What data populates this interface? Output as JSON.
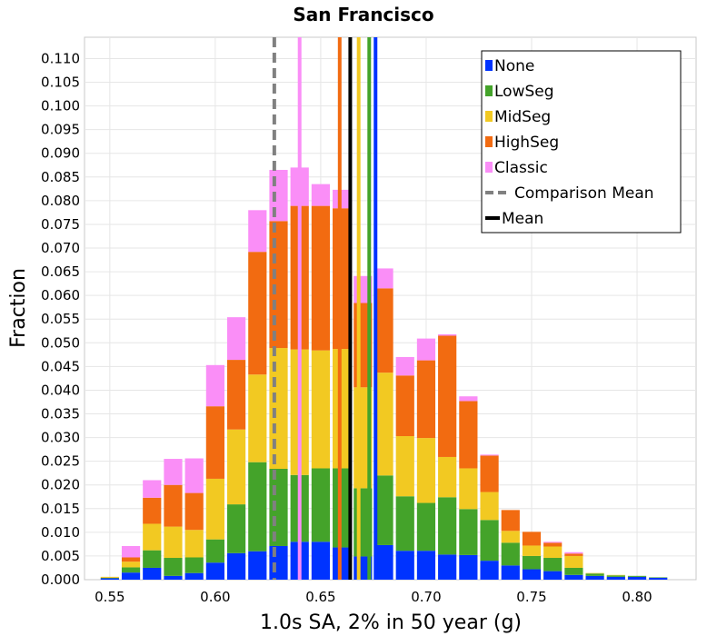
{
  "chart_data": {
    "type": "bar",
    "stacked": true,
    "title": "San Francisco",
    "xlabel": "1.0s SA, 2% in 50 year (g)",
    "ylabel": "Fraction",
    "xlim": [
      0.538,
      0.828
    ],
    "ylim": [
      0.0,
      0.1145
    ],
    "xticks": [
      "0.55",
      "0.60",
      "0.65",
      "0.70",
      "0.75",
      "0.80"
    ],
    "yticks": [
      "0.000",
      "0.005",
      "0.010",
      "0.015",
      "0.020",
      "0.025",
      "0.030",
      "0.035",
      "0.040",
      "0.045",
      "0.050",
      "0.055",
      "0.060",
      "0.065",
      "0.070",
      "0.075",
      "0.080",
      "0.085",
      "0.090",
      "0.095",
      "0.100",
      "0.105",
      "0.110"
    ],
    "grid": true,
    "bin_width": 0.01,
    "bin_centers": [
      0.55,
      0.56,
      0.57,
      0.58,
      0.59,
      0.6,
      0.61,
      0.62,
      0.63,
      0.64,
      0.65,
      0.66,
      0.67,
      0.68,
      0.69,
      0.7,
      0.71,
      0.72,
      0.73,
      0.74,
      0.75,
      0.76,
      0.77,
      0.78,
      0.79,
      0.8,
      0.81
    ],
    "series": [
      {
        "name": "None",
        "color": "#0033ff",
        "values": [
          0.0003,
          0.0015,
          0.0025,
          0.0008,
          0.0014,
          0.0036,
          0.0056,
          0.006,
          0.0071,
          0.008,
          0.008,
          0.0068,
          0.0049,
          0.0073,
          0.0061,
          0.0061,
          0.0053,
          0.0052,
          0.004,
          0.003,
          0.0022,
          0.0018,
          0.001,
          0.0008,
          0.0006,
          0.0006,
          0.0004
        ]
      },
      {
        "name": "LowSeg",
        "color": "#44a32a",
        "values": [
          0.0001,
          0.0011,
          0.0037,
          0.0038,
          0.0033,
          0.0049,
          0.0103,
          0.0188,
          0.0163,
          0.0141,
          0.0155,
          0.0167,
          0.0144,
          0.0147,
          0.0115,
          0.0101,
          0.0121,
          0.0097,
          0.0086,
          0.0048,
          0.0028,
          0.0028,
          0.0015,
          0.0005,
          0.0003,
          0.0002,
          0.0001
        ]
      },
      {
        "name": "MidSeg",
        "color": "#f2c922",
        "values": [
          0.0002,
          0.0012,
          0.0056,
          0.0066,
          0.0058,
          0.0128,
          0.0158,
          0.0185,
          0.0255,
          0.0265,
          0.0249,
          0.0252,
          0.0213,
          0.0217,
          0.0127,
          0.0137,
          0.0085,
          0.0086,
          0.0059,
          0.0025,
          0.0022,
          0.0024,
          0.0025,
          0.0001,
          0.0001,
          0.0,
          0.0
        ]
      },
      {
        "name": "HighSeg",
        "color": "#f26b11",
        "values": [
          0.0,
          0.0009,
          0.0055,
          0.0088,
          0.0078,
          0.0153,
          0.0147,
          0.0259,
          0.0268,
          0.0303,
          0.0305,
          0.0297,
          0.0178,
          0.0178,
          0.0128,
          0.0164,
          0.0256,
          0.0142,
          0.0077,
          0.0044,
          0.0029,
          0.0008,
          0.0005,
          0.0,
          0.0,
          0.0,
          0.0
        ]
      },
      {
        "name": "Classic",
        "color": "#fa8ef7",
        "values": [
          0.0,
          0.0024,
          0.0037,
          0.0055,
          0.0073,
          0.0087,
          0.009,
          0.0088,
          0.0108,
          0.0081,
          0.0046,
          0.0039,
          0.0057,
          0.0042,
          0.0039,
          0.0046,
          0.0003,
          0.001,
          0.0002,
          0.0,
          0.0,
          0.0002,
          0.0003,
          0.0,
          0.0,
          0.0,
          0.0
        ]
      }
    ],
    "mean_lines": [
      {
        "name": "None",
        "x": 0.676,
        "color": "#0033ff"
      },
      {
        "name": "LowSeg",
        "x": 0.673,
        "color": "#44a32a"
      },
      {
        "name": "MidSeg",
        "x": 0.668,
        "color": "#f2c922"
      },
      {
        "name": "HighSeg",
        "x": 0.659,
        "color": "#f26b11"
      },
      {
        "name": "Classic",
        "x": 0.64,
        "color": "#fa8ef7"
      }
    ],
    "comparison_mean": {
      "name": "Comparison Mean",
      "x": 0.628,
      "color": "#808080"
    },
    "mean": {
      "name": "Mean",
      "x": 0.664,
      "color": "#000000"
    },
    "legend": {
      "placement": "top-right",
      "entries": [
        {
          "label": "None",
          "color": "#0033ff",
          "style": "box"
        },
        {
          "label": "LowSeg",
          "color": "#44a32a",
          "style": "box"
        },
        {
          "label": "MidSeg",
          "color": "#f2c922",
          "style": "box"
        },
        {
          "label": "HighSeg",
          "color": "#f26b11",
          "style": "box"
        },
        {
          "label": "Classic",
          "color": "#fa8ef7",
          "style": "box"
        },
        {
          "label": "Comparison Mean",
          "color": "#808080",
          "style": "dashed"
        },
        {
          "label": "Mean",
          "color": "#000000",
          "style": "solid"
        }
      ]
    }
  }
}
